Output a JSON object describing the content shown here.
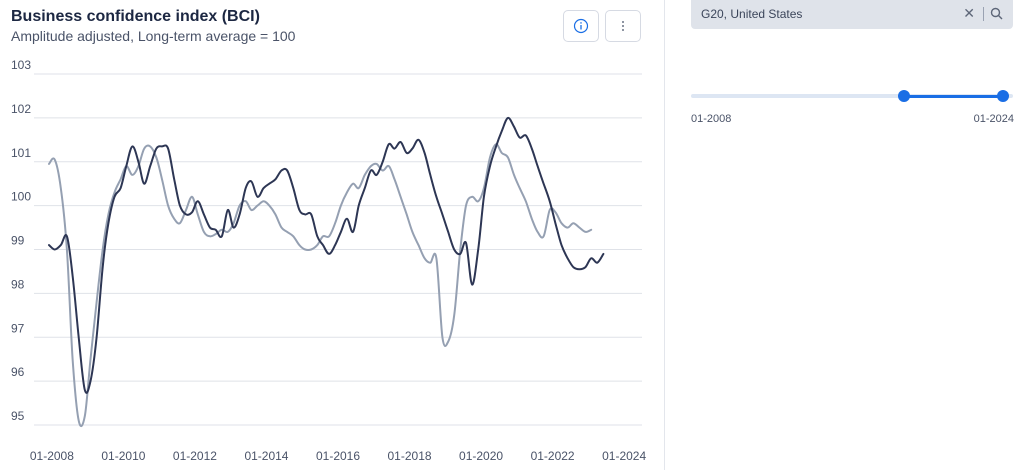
{
  "header": {
    "title": "Business confidence index (BCI)",
    "subtitle": "Amplitude adjusted, Long-term average = 100"
  },
  "filter": {
    "selected": "G20, United States",
    "clear_icon": "x-icon",
    "search_icon": "search-icon"
  },
  "time_range": {
    "min_label": "01-2008",
    "max_label": "01-2024",
    "start_fraction": 0.66,
    "end_fraction": 1.0
  },
  "colors": {
    "series_dark": "#2d3654",
    "series_light": "#95a0b2",
    "accent": "#1a6ee5",
    "grid": "#dfe2e8"
  },
  "chart_data": {
    "type": "line",
    "title": "Business confidence index (BCI)",
    "subtitle": "Amplitude adjusted, Long-term average = 100",
    "ylim": [
      95,
      103
    ],
    "yticks": [
      95,
      96,
      97,
      98,
      99,
      100,
      101,
      102,
      103
    ],
    "xlim": [
      2007.5,
      2024.5
    ],
    "xticks": [
      2008,
      2010,
      2012,
      2014,
      2016,
      2018,
      2020,
      2022,
      2024
    ],
    "xtick_labels": [
      "01-2008",
      "01-2010",
      "01-2012",
      "01-2014",
      "01-2016",
      "01-2018",
      "01-2020",
      "01-2022",
      "01-2024"
    ],
    "grid": true,
    "series": [
      {
        "color": "#2d3654",
        "points": [
          [
            2007.92,
            99.1
          ],
          [
            2008.08,
            99.0
          ],
          [
            2008.25,
            99.1
          ],
          [
            2008.42,
            99.3
          ],
          [
            2008.58,
            98.4
          ],
          [
            2008.75,
            97.0
          ],
          [
            2008.92,
            95.8
          ],
          [
            2009.08,
            96.0
          ],
          [
            2009.25,
            97.0
          ],
          [
            2009.42,
            98.6
          ],
          [
            2009.58,
            99.6
          ],
          [
            2009.75,
            100.2
          ],
          [
            2009.92,
            100.4
          ],
          [
            2010.08,
            100.9
          ],
          [
            2010.25,
            101.35
          ],
          [
            2010.42,
            101.0
          ],
          [
            2010.58,
            100.5
          ],
          [
            2010.75,
            100.9
          ],
          [
            2010.92,
            101.3
          ],
          [
            2011.08,
            101.35
          ],
          [
            2011.25,
            101.3
          ],
          [
            2011.42,
            100.6
          ],
          [
            2011.58,
            100.0
          ],
          [
            2011.75,
            99.8
          ],
          [
            2011.92,
            99.85
          ],
          [
            2012.08,
            100.1
          ],
          [
            2012.25,
            99.8
          ],
          [
            2012.42,
            99.5
          ],
          [
            2012.58,
            99.45
          ],
          [
            2012.75,
            99.3
          ],
          [
            2012.92,
            99.9
          ],
          [
            2013.08,
            99.5
          ],
          [
            2013.25,
            99.8
          ],
          [
            2013.42,
            100.4
          ],
          [
            2013.58,
            100.55
          ],
          [
            2013.75,
            100.2
          ],
          [
            2013.92,
            100.4
          ],
          [
            2014.08,
            100.5
          ],
          [
            2014.25,
            100.6
          ],
          [
            2014.42,
            100.8
          ],
          [
            2014.58,
            100.8
          ],
          [
            2014.75,
            100.4
          ],
          [
            2014.92,
            99.9
          ],
          [
            2015.08,
            99.8
          ],
          [
            2015.25,
            99.8
          ],
          [
            2015.42,
            99.3
          ],
          [
            2015.58,
            99.1
          ],
          [
            2015.75,
            98.9
          ],
          [
            2015.92,
            99.1
          ],
          [
            2016.08,
            99.4
          ],
          [
            2016.25,
            99.7
          ],
          [
            2016.42,
            99.4
          ],
          [
            2016.58,
            100.0
          ],
          [
            2016.75,
            100.4
          ],
          [
            2016.92,
            100.8
          ],
          [
            2017.08,
            100.7
          ],
          [
            2017.25,
            101.0
          ],
          [
            2017.42,
            101.4
          ],
          [
            2017.58,
            101.3
          ],
          [
            2017.75,
            101.45
          ],
          [
            2017.92,
            101.2
          ],
          [
            2018.08,
            101.3
          ],
          [
            2018.25,
            101.5
          ],
          [
            2018.42,
            101.2
          ],
          [
            2018.58,
            100.7
          ],
          [
            2018.75,
            100.2
          ],
          [
            2018.92,
            99.8
          ],
          [
            2019.08,
            99.4
          ],
          [
            2019.25,
            99.0
          ],
          [
            2019.42,
            98.9
          ],
          [
            2019.58,
            99.15
          ],
          [
            2019.75,
            98.2
          ],
          [
            2019.92,
            99.0
          ],
          [
            2020.08,
            100.2
          ],
          [
            2020.25,
            100.9
          ],
          [
            2020.42,
            101.35
          ],
          [
            2020.58,
            101.7
          ],
          [
            2020.75,
            102.0
          ],
          [
            2020.92,
            101.8
          ],
          [
            2021.08,
            101.55
          ],
          [
            2021.25,
            101.6
          ],
          [
            2021.42,
            101.3
          ],
          [
            2021.58,
            100.9
          ],
          [
            2021.75,
            100.5
          ],
          [
            2021.92,
            100.1
          ],
          [
            2022.08,
            99.6
          ],
          [
            2022.25,
            99.1
          ],
          [
            2022.42,
            98.8
          ],
          [
            2022.58,
            98.6
          ],
          [
            2022.75,
            98.55
          ],
          [
            2022.92,
            98.6
          ],
          [
            2023.08,
            98.8
          ],
          [
            2023.25,
            98.7
          ],
          [
            2023.42,
            98.9
          ]
        ]
      },
      {
        "color": "#95a0b2",
        "points": [
          [
            2007.92,
            100.95
          ],
          [
            2008.08,
            101.05
          ],
          [
            2008.25,
            100.4
          ],
          [
            2008.42,
            99.0
          ],
          [
            2008.58,
            96.5
          ],
          [
            2008.75,
            95.1
          ],
          [
            2008.92,
            95.2
          ],
          [
            2009.08,
            96.5
          ],
          [
            2009.25,
            97.8
          ],
          [
            2009.42,
            99.0
          ],
          [
            2009.58,
            99.8
          ],
          [
            2009.75,
            100.3
          ],
          [
            2009.92,
            100.6
          ],
          [
            2010.08,
            100.9
          ],
          [
            2010.25,
            100.7
          ],
          [
            2010.42,
            100.9
          ],
          [
            2010.58,
            101.3
          ],
          [
            2010.75,
            101.35
          ],
          [
            2010.92,
            101.1
          ],
          [
            2011.08,
            100.6
          ],
          [
            2011.25,
            100.0
          ],
          [
            2011.42,
            99.7
          ],
          [
            2011.58,
            99.6
          ],
          [
            2011.75,
            99.9
          ],
          [
            2011.92,
            100.2
          ],
          [
            2012.08,
            99.8
          ],
          [
            2012.25,
            99.4
          ],
          [
            2012.42,
            99.3
          ],
          [
            2012.58,
            99.35
          ],
          [
            2012.75,
            99.45
          ],
          [
            2012.92,
            99.4
          ],
          [
            2013.08,
            99.6
          ],
          [
            2013.25,
            100.0
          ],
          [
            2013.42,
            100.1
          ],
          [
            2013.58,
            99.9
          ],
          [
            2013.75,
            100.0
          ],
          [
            2013.92,
            100.1
          ],
          [
            2014.08,
            100.0
          ],
          [
            2014.25,
            99.8
          ],
          [
            2014.42,
            99.5
          ],
          [
            2014.58,
            99.4
          ],
          [
            2014.75,
            99.3
          ],
          [
            2014.92,
            99.1
          ],
          [
            2015.08,
            99.0
          ],
          [
            2015.25,
            99.0
          ],
          [
            2015.42,
            99.1
          ],
          [
            2015.58,
            99.3
          ],
          [
            2015.75,
            99.3
          ],
          [
            2015.92,
            99.6
          ],
          [
            2016.08,
            100.0
          ],
          [
            2016.25,
            100.3
          ],
          [
            2016.42,
            100.5
          ],
          [
            2016.58,
            100.4
          ],
          [
            2016.75,
            100.7
          ],
          [
            2016.92,
            100.9
          ],
          [
            2017.08,
            100.95
          ],
          [
            2017.25,
            100.8
          ],
          [
            2017.42,
            100.9
          ],
          [
            2017.58,
            100.6
          ],
          [
            2017.75,
            100.2
          ],
          [
            2017.92,
            99.8
          ],
          [
            2018.08,
            99.4
          ],
          [
            2018.25,
            99.1
          ],
          [
            2018.42,
            98.8
          ],
          [
            2018.58,
            98.7
          ],
          [
            2018.75,
            98.8
          ],
          [
            2018.92,
            97.0
          ],
          [
            2019.08,
            96.9
          ],
          [
            2019.25,
            97.5
          ],
          [
            2019.42,
            99.0
          ],
          [
            2019.58,
            100.0
          ],
          [
            2019.75,
            100.2
          ],
          [
            2019.92,
            100.1
          ],
          [
            2020.08,
            100.4
          ],
          [
            2020.25,
            101.1
          ],
          [
            2020.42,
            101.4
          ],
          [
            2020.58,
            101.2
          ],
          [
            2020.75,
            101.1
          ],
          [
            2020.92,
            100.7
          ],
          [
            2021.08,
            100.4
          ],
          [
            2021.25,
            100.1
          ],
          [
            2021.42,
            99.7
          ],
          [
            2021.58,
            99.4
          ],
          [
            2021.75,
            99.3
          ],
          [
            2021.92,
            99.9
          ],
          [
            2022.08,
            99.85
          ],
          [
            2022.25,
            99.6
          ],
          [
            2022.42,
            99.5
          ],
          [
            2022.58,
            99.6
          ],
          [
            2022.75,
            99.5
          ],
          [
            2022.92,
            99.4
          ],
          [
            2023.08,
            99.45
          ]
        ]
      }
    ]
  }
}
